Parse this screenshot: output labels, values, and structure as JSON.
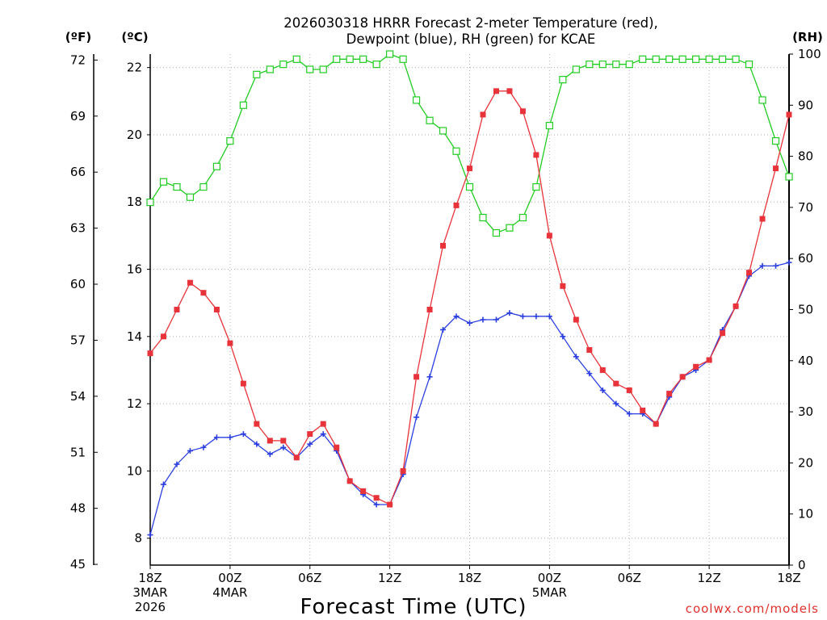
{
  "chart_data": {
    "type": "line",
    "title": [
      "2026030318 HRRR Forecast 2-meter Temperature (red),",
      "Dewpoint (blue), RH (green) for KCAE"
    ],
    "xlabel": "Forecast Time (UTC)",
    "credit": "coolwx.com/models",
    "units": {
      "fahrenheit": "(ºF)",
      "celsius": "(ºC)",
      "rh": "(RH)"
    },
    "y_celsius": {
      "ticks": [
        8,
        10,
        12,
        14,
        16,
        18,
        20,
        22
      ],
      "range": [
        7.2,
        22.4
      ]
    },
    "y_fahrenheit": {
      "ticks": [
        45,
        48,
        51,
        54,
        57,
        60,
        63,
        66,
        69,
        72
      ]
    },
    "y_rh": {
      "ticks": [
        0,
        10,
        20,
        30,
        40,
        50,
        60,
        70,
        80,
        90,
        100
      ],
      "range": [
        0,
        100
      ]
    },
    "x_hours": {
      "range": [
        0,
        48
      ]
    },
    "x_ticks": [
      {
        "hour": 0,
        "lines": [
          "18Z",
          "3MAR",
          "2026"
        ]
      },
      {
        "hour": 6,
        "lines": [
          "00Z",
          "4MAR"
        ]
      },
      {
        "hour": 12,
        "lines": [
          "06Z"
        ]
      },
      {
        "hour": 18,
        "lines": [
          "12Z"
        ]
      },
      {
        "hour": 24,
        "lines": [
          "18Z"
        ]
      },
      {
        "hour": 30,
        "lines": [
          "00Z",
          "5MAR"
        ]
      },
      {
        "hour": 36,
        "lines": [
          "06Z"
        ]
      },
      {
        "hour": 42,
        "lines": [
          "12Z"
        ]
      },
      {
        "hour": 48,
        "lines": [
          "18Z"
        ]
      }
    ],
    "series": [
      {
        "name": "Temperature",
        "color": "#e8333a",
        "axis": "celsius",
        "marker": "filled-square",
        "values": [
          13.5,
          14.0,
          14.8,
          15.6,
          15.3,
          14.8,
          13.8,
          12.6,
          11.4,
          10.9,
          10.9,
          10.4,
          11.1,
          11.4,
          10.7,
          9.7,
          9.4,
          9.2,
          9.0,
          10.0,
          12.8,
          14.8,
          16.7,
          17.9,
          19.0,
          20.6,
          21.3,
          21.3,
          20.7,
          19.4,
          17.0,
          15.5,
          14.5,
          13.6,
          13.0,
          12.6,
          12.4,
          11.8,
          11.4,
          12.3,
          12.8,
          13.1,
          13.3,
          14.1,
          14.9,
          15.9,
          17.5,
          19.0,
          20.6
        ]
      },
      {
        "name": "Dewpoint",
        "color": "#2b3fe0",
        "axis": "celsius",
        "marker": "plus",
        "values": [
          8.1,
          9.6,
          10.2,
          10.6,
          10.7,
          11.0,
          11.0,
          11.1,
          10.8,
          10.5,
          10.7,
          10.4,
          10.8,
          11.1,
          10.6,
          9.7,
          9.3,
          9.0,
          9.0,
          9.9,
          11.6,
          12.8,
          14.2,
          14.6,
          14.4,
          14.5,
          14.5,
          14.7,
          14.6,
          14.6,
          14.6,
          14.0,
          13.4,
          12.9,
          12.4,
          12.0,
          11.7,
          11.7,
          11.4,
          12.2,
          12.8,
          13.0,
          13.3,
          14.2,
          14.9,
          15.8,
          16.1,
          16.1,
          16.2
        ]
      },
      {
        "name": "RH",
        "color": "#22cc22",
        "axis": "rh",
        "marker": "open-square",
        "values": [
          71,
          75,
          74,
          72,
          74,
          78,
          83,
          90,
          96,
          97,
          98,
          99,
          97,
          97,
          99,
          99,
          99,
          98,
          100,
          99,
          91,
          87,
          85,
          81,
          74,
          68,
          65,
          66,
          68,
          74,
          86,
          95,
          97,
          98,
          98,
          98,
          98,
          99,
          99,
          99,
          99,
          99,
          99,
          99,
          99,
          98,
          91,
          83,
          76
        ]
      }
    ]
  }
}
